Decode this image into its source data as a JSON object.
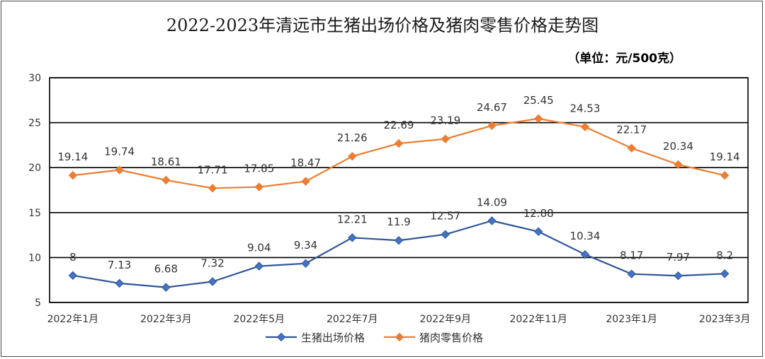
{
  "chart_data": {
    "type": "line",
    "title": "2022-2023年清远市生猪出场价格及猪肉零售价格走势图",
    "unit": "（单位：元/500克）",
    "xlabel": "",
    "ylabel": "",
    "ylim": [
      5,
      30
    ],
    "yticks": [
      "5",
      "10",
      "15",
      "20",
      "25",
      "30"
    ],
    "grid": "horizontal",
    "legend_position": "bottom",
    "x_tick_labels": [
      "2022年1月",
      "2022年3月",
      "2022年5月",
      "2022年7月",
      "2022年9月",
      "2022年11月",
      "2023年1月",
      "2023年3月"
    ],
    "categories": [
      "2022年1月",
      "2022年2月",
      "2022年3月",
      "2022年4月",
      "2022年5月",
      "2022年6月",
      "2022年7月",
      "2022年8月",
      "2022年9月",
      "2022年10月",
      "2022年11月",
      "2022年12月",
      "2023年1月",
      "2023年2月",
      "2023年3月"
    ],
    "series": [
      {
        "name": "生猪出场价格",
        "color": "#2e5597",
        "marker_color": "#4472c4",
        "values": [
          8,
          7.13,
          6.68,
          7.32,
          9.04,
          9.34,
          12.21,
          11.9,
          12.57,
          14.09,
          12.88,
          10.34,
          8.17,
          7.97,
          8.2
        ],
        "labels": [
          "8",
          "7.13",
          "6.68",
          "7.32",
          "9.04",
          "9.34",
          "12.21",
          "11.9",
          "12.57",
          "14.09",
          "12.88",
          "10.34",
          "8.17",
          "7.97",
          "8.2"
        ]
      },
      {
        "name": "猪肉零售价格",
        "color": "#ed7d31",
        "marker_color": "#ed7d31",
        "values": [
          19.14,
          19.74,
          18.61,
          17.71,
          17.85,
          18.47,
          21.26,
          22.69,
          23.19,
          24.67,
          25.45,
          24.53,
          22.17,
          20.34,
          19.14
        ],
        "labels": [
          "19.14",
          "19.74",
          "18.61",
          "17.71",
          "17.85",
          "18.47",
          "21.26",
          "22.69",
          "23.19",
          "24.67",
          "25.45",
          "24.53",
          "22.17",
          "20.34",
          "19.14"
        ]
      }
    ]
  }
}
